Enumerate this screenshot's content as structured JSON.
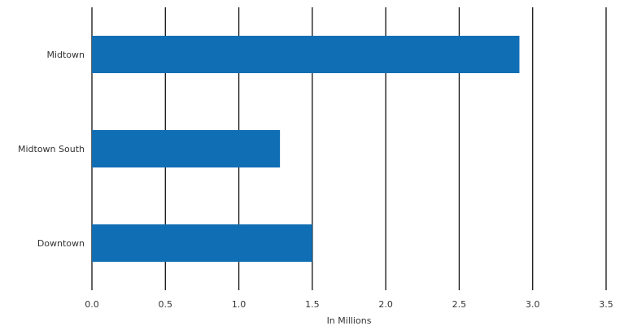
{
  "chart_data": {
    "type": "bar",
    "orientation": "horizontal",
    "categories": [
      "Midtown",
      "Midtown South",
      "Downtown"
    ],
    "series": [
      {
        "values": [
          2.91,
          1.28,
          1.5
        ]
      }
    ],
    "xlabel": "In Millions",
    "xlim": [
      0,
      3.5
    ],
    "x_ticks": [
      "0.0",
      "0.5",
      "1.0",
      "1.5",
      "2.0",
      "2.5",
      "3.0",
      "3.5"
    ],
    "grid": "vertical",
    "legend": "none",
    "colors": {
      "bar": "#106eb4",
      "grid": "#111111"
    }
  }
}
